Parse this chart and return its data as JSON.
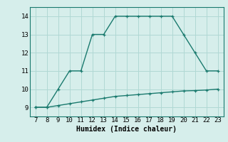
{
  "title": "",
  "xlabel": "Humidex (Indice chaleur)",
  "ylabel": "",
  "x_upper": [
    7,
    8,
    9,
    10,
    11,
    12,
    13,
    14,
    15,
    16,
    17,
    18,
    19,
    20,
    21,
    22,
    23
  ],
  "y_upper": [
    9,
    9,
    10,
    11,
    11,
    13,
    13,
    14,
    14,
    14,
    14,
    14,
    14,
    13,
    12,
    11,
    11
  ],
  "x_lower": [
    7,
    8,
    9,
    10,
    11,
    12,
    13,
    14,
    15,
    16,
    17,
    18,
    19,
    20,
    21,
    22,
    23
  ],
  "y_lower": [
    9.0,
    9.0,
    9.1,
    9.2,
    9.3,
    9.4,
    9.5,
    9.6,
    9.65,
    9.7,
    9.75,
    9.8,
    9.85,
    9.9,
    9.92,
    9.95,
    10.0
  ],
  "line_color": "#1a7a6e",
  "bg_color": "#d6eeeb",
  "grid_color": "#b0d8d4",
  "xlim": [
    6.5,
    23.5
  ],
  "ylim": [
    8.5,
    14.5
  ],
  "xticks": [
    7,
    8,
    9,
    10,
    11,
    12,
    13,
    14,
    15,
    16,
    17,
    18,
    19,
    20,
    21,
    22,
    23
  ],
  "yticks": [
    9,
    10,
    11,
    12,
    13,
    14
  ],
  "marker": "+",
  "markersize": 3.5,
  "linewidth": 1.0,
  "xlabel_fontsize": 7,
  "tick_fontsize": 6.5,
  "font_family": "monospace"
}
